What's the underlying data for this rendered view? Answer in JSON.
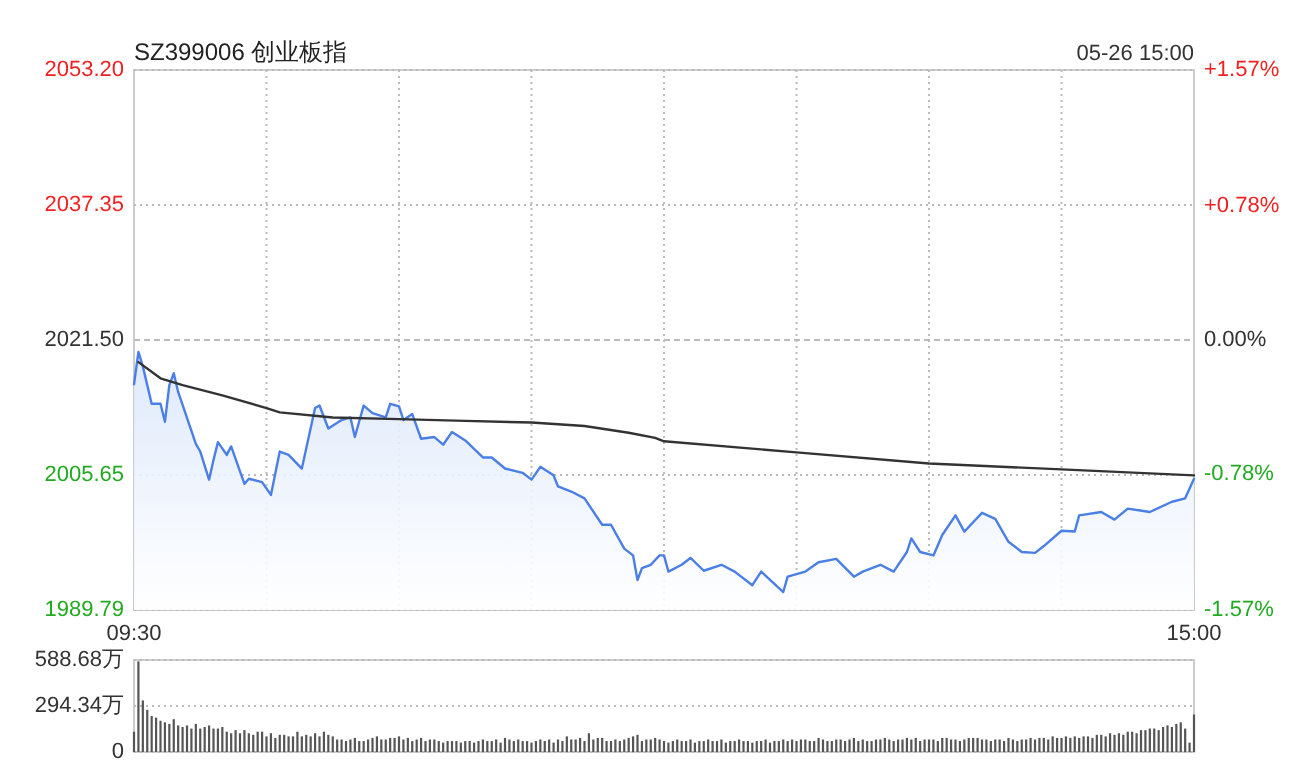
{
  "chart_data": [
    {
      "type": "line",
      "title": "SZ399006 创业板指",
      "annotations": [
        "05-26 15:00"
      ],
      "categories": [
        "09:30",
        null,
        null,
        null,
        null,
        null,
        null,
        null,
        null,
        null,
        null,
        null,
        null,
        null,
        null,
        null,
        null,
        null,
        null,
        null,
        null,
        null,
        null,
        null,
        null,
        null,
        null,
        null,
        null,
        null,
        null,
        null,
        null,
        null,
        null,
        null,
        null,
        null,
        null,
        null,
        null,
        null,
        null,
        null,
        null,
        null,
        null,
        null,
        null,
        null,
        null,
        null,
        null,
        null,
        null,
        null,
        null,
        null,
        null,
        null,
        null,
        null,
        null,
        null,
        null,
        null,
        null,
        null,
        null,
        null,
        null,
        null,
        null,
        null,
        null,
        null,
        null,
        null,
        null,
        null,
        null,
        null,
        null,
        null,
        null,
        null,
        null,
        null,
        null,
        null,
        null,
        null,
        null,
        null,
        null,
        null,
        null,
        null,
        null,
        null,
        null,
        null,
        null,
        null,
        null,
        null,
        null,
        null,
        null,
        null,
        null,
        null,
        null,
        null,
        null,
        null,
        null,
        null,
        null,
        null,
        null,
        null,
        null,
        null,
        null,
        null,
        null,
        null,
        null,
        null,
        null,
        null,
        null,
        null,
        null,
        null,
        null,
        null,
        null,
        null,
        null,
        null,
        null,
        null,
        null,
        null,
        null,
        null,
        null,
        null,
        null,
        null,
        null,
        null,
        null,
        null,
        null,
        null,
        null,
        null,
        null,
        null,
        null,
        null,
        null,
        null,
        null,
        null,
        null,
        null,
        null,
        null,
        null,
        null,
        null,
        null,
        null,
        null,
        null,
        null,
        null,
        null,
        null,
        null,
        null,
        null,
        null,
        null,
        null,
        null,
        null,
        null,
        null,
        null,
        null,
        null,
        null,
        null,
        null,
        null,
        null,
        null,
        null,
        null,
        null,
        null,
        null,
        null,
        null,
        null,
        null,
        null,
        null,
        null,
        null,
        null,
        null,
        null,
        null,
        null,
        null,
        null,
        null,
        null,
        null,
        null,
        null,
        null,
        null,
        null,
        null,
        null,
        null,
        null,
        null,
        null,
        null,
        null,
        null,
        null,
        "15:00"
      ],
      "ylim": [
        1989.79,
        2053.2
      ],
      "yticks": [
        {
          "value": 1989.79,
          "label": "1989.79"
        },
        {
          "value": 2005.65,
          "label": "2005.65"
        },
        {
          "value": 2021.5,
          "label": "2021.50"
        },
        {
          "value": 2037.35,
          "label": "2037.35"
        },
        {
          "value": 2053.2,
          "label": "2053.20"
        }
      ],
      "y2lim": [
        -1.57,
        1.57
      ],
      "y2ticks": [
        {
          "value": -1.57,
          "label": "-1.57%"
        },
        {
          "value": -0.78,
          "label": "-0.78%"
        },
        {
          "value": 0,
          "label": "0.00%"
        },
        {
          "value": 0.78,
          "label": "+0.78%"
        },
        {
          "value": 1.57,
          "label": "+1.57%"
        }
      ],
      "grid": true,
      "series": [
        {
          "type": "area",
          "color": "#4a7fe6",
          "values": [
            2016.3,
            2020.1,
            2018.4,
            null,
            2014.0,
            null,
            2014.0,
            2011.9,
            2016.2,
            2017.6,
            2015.4,
            null,
            null,
            null,
            2009.3,
            2008.4,
            null,
            2005.1,
            2007.4,
            2009.5,
            null,
            2008.0,
            2009.0,
            null,
            null,
            2004.6,
            2005.2,
            null,
            null,
            2004.8,
            null,
            2003.3,
            null,
            2008.4,
            null,
            2008.0,
            null,
            null,
            2006.4,
            null,
            null,
            2013.5,
            2013.8,
            null,
            2011.1,
            null,
            null,
            2012.1,
            null,
            2012.4,
            2010.1,
            null,
            2013.8,
            null,
            2012.9,
            null,
            null,
            2012.4,
            2014.0,
            null,
            2013.7,
            2012.1,
            null,
            2012.8,
            null,
            2009.9,
            null,
            null,
            2010.1,
            null,
            2009.2,
            null,
            2010.7,
            null,
            null,
            2009.7,
            null,
            null,
            null,
            2007.7,
            null,
            2007.7,
            null,
            null,
            2006.4,
            null,
            null,
            null,
            2005.9,
            null,
            2005.1,
            null,
            2006.6,
            null,
            null,
            2005.6,
            2004.3,
            null,
            null,
            2003.7,
            null,
            null,
            2002.9,
            null,
            null,
            null,
            1999.8,
            null,
            1999.8,
            null,
            null,
            1997.0,
            null,
            1996.2,
            1993.3,
            1994.7,
            null,
            1995.1,
            null,
            1996.2,
            1996.2,
            1994.3,
            null,
            null,
            1995.1,
            null,
            1995.9,
            null,
            null,
            1994.4,
            null,
            null,
            null,
            1995.1,
            null,
            null,
            1994.3,
            null,
            null,
            null,
            1992.7,
            null,
            1994.3,
            null,
            null,
            null,
            null,
            1991.9,
            1993.7,
            null,
            null,
            null,
            1994.3,
            null,
            null,
            1995.4,
            null,
            null,
            null,
            1995.8,
            null,
            null,
            null,
            1993.7,
            null,
            1994.3,
            null,
            null,
            null,
            1995.1,
            null,
            null,
            1994.3,
            null,
            null,
            1996.6,
            1998.2,
            null,
            1996.6,
            null,
            null,
            1996.2,
            null,
            1998.6,
            null,
            null,
            2000.9,
            null,
            1999.0,
            null,
            2000.1,
            null,
            2001.2,
            null,
            null,
            2000.5,
            null,
            null,
            1997.8,
            null,
            null,
            1996.6,
            null,
            null,
            1996.5,
            null,
            1997.3,
            null,
            null,
            null,
            1999.1,
            null,
            null,
            1999.0,
            2000.9,
            null,
            null,
            null,
            null,
            2001.3,
            null,
            null,
            2000.4,
            null,
            null,
            2001.7,
            null,
            null,
            null,
            null,
            2001.3,
            null,
            null,
            null,
            null,
            2002.5,
            null,
            null,
            2002.9,
            null,
            2005.2
          ]
        },
        {
          "type": "line",
          "color": "#333333",
          "values": [
            null,
            2018.9,
            null,
            null,
            null,
            null,
            2017.0,
            null,
            null,
            null,
            null,
            2016.2,
            null,
            null,
            null,
            null,
            null,
            null,
            null,
            null,
            2015.0,
            null,
            null,
            null,
            null,
            null,
            null,
            null,
            null,
            null,
            2013.5,
            null,
            null,
            2013.0,
            null,
            null,
            null,
            null,
            null,
            null,
            null,
            null,
            null,
            null,
            null,
            2012.4,
            null,
            null,
            null,
            null,
            null,
            null,
            null,
            null,
            null,
            null,
            null,
            null,
            null,
            null,
            2012.2,
            null,
            null,
            null,
            null,
            null,
            null,
            null,
            null,
            null,
            null,
            null,
            null,
            null,
            null,
            2012.0,
            null,
            null,
            null,
            null,
            null,
            null,
            null,
            null,
            null,
            null,
            null,
            null,
            null,
            null,
            2011.8,
            null,
            null,
            null,
            null,
            null,
            null,
            null,
            null,
            null,
            null,
            null,
            2011.4,
            null,
            null,
            null,
            null,
            null,
            null,
            null,
            null,
            null,
            2010.6,
            null,
            null,
            null,
            null,
            null,
            2010.0,
            null,
            2009.6,
            null,
            null,
            null,
            null,
            null,
            null,
            null,
            null,
            null,
            null,
            null,
            null,
            null,
            null,
            null,
            null,
            null,
            null,
            null,
            null,
            null,
            null,
            null,
            null,
            null,
            null,
            null,
            null,
            null,
            2008.3,
            null,
            null,
            null,
            null,
            null,
            null,
            null,
            null,
            null,
            null,
            null,
            null,
            null,
            null,
            null,
            null,
            null,
            null,
            null,
            null,
            null,
            null,
            null,
            null,
            null,
            null,
            null,
            null,
            null,
            2007.0,
            null,
            null,
            null,
            null,
            null,
            null,
            null,
            null,
            null,
            null,
            null,
            null,
            null,
            null,
            null,
            null,
            null,
            null,
            null,
            null,
            null,
            null,
            null,
            null,
            null,
            null,
            null,
            null,
            null,
            2006.3,
            null,
            null,
            null,
            null,
            null,
            null,
            null,
            null,
            null,
            null,
            null,
            null,
            null,
            null,
            null,
            null,
            null,
            null,
            null,
            null,
            null,
            null,
            null,
            null,
            null,
            null,
            null,
            null,
            null,
            2005.6
          ]
        }
      ]
    },
    {
      "type": "bar",
      "color": "#555555",
      "ylim": [
        0,
        588.68
      ],
      "yticks": [
        0,
        {
          "value": 294.34,
          "label": "294.34万"
        },
        {
          "value": 588.68,
          "label": "588.68万"
        }
      ],
      "grid": "y",
      "tick_labels": "y",
      "categories": [
        null,
        null,
        null,
        null,
        null,
        null,
        null,
        null,
        null,
        null,
        null,
        null,
        null,
        null,
        null,
        null,
        null,
        null,
        null,
        null,
        null,
        null,
        null,
        null,
        null,
        null,
        null,
        null,
        null,
        null,
        null,
        null,
        null,
        null,
        null,
        null,
        null,
        null,
        null,
        null,
        null,
        null,
        null,
        null,
        null,
        null,
        null,
        null,
        null,
        null,
        null,
        null,
        null,
        null,
        null,
        null,
        null,
        null,
        null,
        null,
        null,
        null,
        null,
        null,
        null,
        null,
        null,
        null,
        null,
        null,
        null,
        null,
        null,
        null,
        null,
        null,
        null,
        null,
        null,
        null,
        null,
        null,
        null,
        null,
        null,
        null,
        null,
        null,
        null,
        null,
        null,
        null,
        null,
        null,
        null,
        null,
        null,
        null,
        null,
        null,
        null,
        null,
        null,
        null,
        null,
        null,
        null,
        null,
        null,
        null,
        null,
        null,
        null,
        null,
        null,
        null,
        null,
        null,
        null,
        null,
        null,
        null,
        null,
        null,
        null,
        null,
        null,
        null,
        null,
        null,
        null,
        null,
        null,
        null,
        null,
        null,
        null,
        null,
        null,
        null,
        null,
        null,
        null,
        null,
        null,
        null,
        null,
        null,
        null,
        null,
        null,
        null,
        null,
        null,
        null,
        null,
        null,
        null,
        null,
        null,
        null,
        null,
        null,
        null,
        null,
        null,
        null,
        null,
        null,
        null,
        null,
        null,
        null,
        null,
        null,
        null,
        null,
        null,
        null,
        null,
        null,
        null,
        null,
        null,
        null,
        null,
        null,
        null,
        null,
        null,
        null,
        null,
        null,
        null,
        null,
        null,
        null,
        null,
        null,
        null,
        null,
        null,
        null,
        null,
        null,
        null,
        null,
        null,
        null,
        null,
        null,
        null,
        null,
        null,
        null,
        null,
        null,
        null,
        null,
        null,
        null,
        null,
        null,
        null,
        null,
        null,
        null,
        null,
        null,
        null,
        null,
        null,
        null,
        null,
        null,
        null,
        null,
        null,
        null,
        null,
        null
      ],
      "values": [
        130,
        580,
        330,
        270,
        230,
        220,
        200,
        190,
        180,
        210,
        170,
        160,
        170,
        150,
        180,
        150,
        160,
        170,
        150,
        150,
        160,
        130,
        120,
        140,
        120,
        140,
        120,
        110,
        130,
        130,
        100,
        120,
        90,
        110,
        110,
        100,
        100,
        130,
        100,
        110,
        100,
        120,
        100,
        130,
        110,
        100,
        80,
        80,
        70,
        80,
        90,
        70,
        70,
        80,
        90,
        100,
        80,
        80,
        90,
        90,
        100,
        80,
        90,
        70,
        80,
        90,
        70,
        80,
        80,
        70,
        60,
        70,
        70,
        70,
        60,
        70,
        70,
        60,
        70,
        80,
        70,
        70,
        80,
        60,
        90,
        80,
        70,
        80,
        70,
        70,
        60,
        70,
        80,
        70,
        80,
        60,
        80,
        70,
        100,
        80,
        80,
        90,
        70,
        120,
        80,
        90,
        90,
        70,
        70,
        80,
        70,
        80,
        90,
        100,
        110,
        70,
        80,
        80,
        90,
        80,
        70,
        60,
        70,
        80,
        70,
        70,
        80,
        60,
        70,
        70,
        80,
        70,
        70,
        80,
        60,
        70,
        70,
        80,
        70,
        70,
        60,
        70,
        70,
        80,
        60,
        70,
        70,
        80,
        70,
        80,
        70,
        80,
        80,
        70,
        70,
        90,
        80,
        70,
        70,
        80,
        80,
        70,
        80,
        90,
        70,
        80,
        70,
        70,
        80,
        80,
        90,
        80,
        70,
        80,
        80,
        90,
        80,
        90,
        70,
        80,
        80,
        80,
        70,
        90,
        90,
        80,
        80,
        70,
        80,
        90,
        90,
        90,
        80,
        80,
        70,
        80,
        80,
        70,
        90,
        80,
        70,
        80,
        80,
        90,
        80,
        90,
        90,
        80,
        100,
        90,
        90,
        100,
        90,
        100,
        90,
        100,
        100,
        90,
        110,
        110,
        100,
        120,
        110,
        120,
        110,
        130,
        130,
        120,
        140,
        140,
        150,
        150,
        140,
        160,
        170,
        160,
        180,
        190,
        150,
        60,
        240
      ]
    }
  ]
}
